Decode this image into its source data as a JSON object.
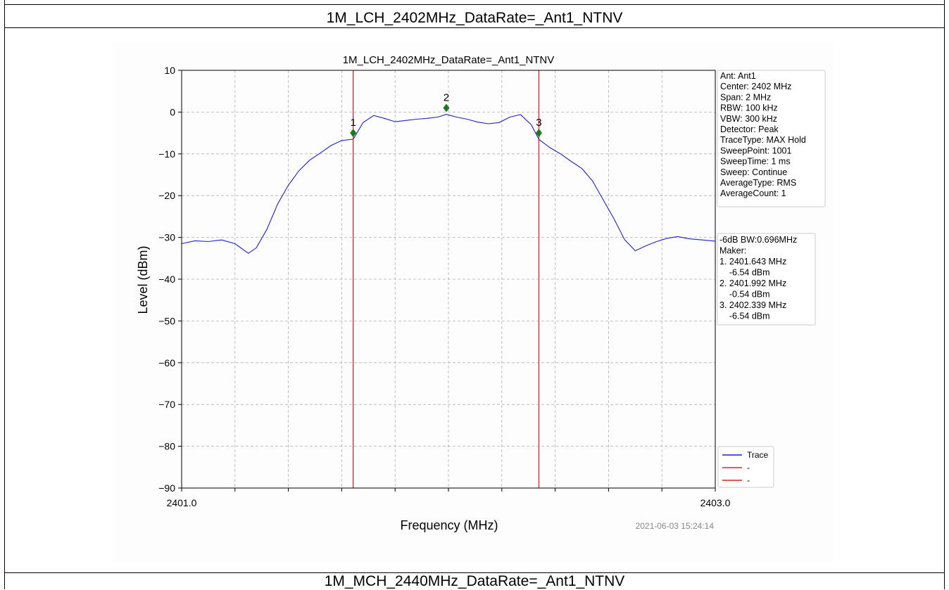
{
  "table": {
    "header_title": "1M_LCH_2402MHz_DataRate=_Ant1_NTNV",
    "footer_title": "1M_MCH_2440MHz_DataRate=_Ant1_NTNV"
  },
  "chart_data": {
    "type": "line",
    "title": "1M_LCH_2402MHz_DataRate=_Ant1_NTNV",
    "xlabel": "Frequency (MHz)",
    "ylabel": "Level (dBm)",
    "xlim": [
      2401.0,
      2403.0
    ],
    "ylim": [
      -90,
      10
    ],
    "x_tick_labels": [
      "2401.0",
      "2403.0"
    ],
    "x_minor_ticks": [
      2401.2,
      2401.4,
      2401.6,
      2401.8,
      2402.0,
      2402.2,
      2402.4,
      2402.6,
      2402.8
    ],
    "y_ticks": [
      10,
      0,
      -10,
      -20,
      -30,
      -40,
      -50,
      -60,
      -70,
      -80,
      -90
    ],
    "grid": true,
    "timestamp": "2021-06-03 15:24:14",
    "series": [
      {
        "name": "Trace",
        "color": "#1f1fd0",
        "x": [
          2401.0,
          2401.05,
          2401.1,
          2401.15,
          2401.2,
          2401.25,
          2401.28,
          2401.32,
          2401.36,
          2401.4,
          2401.44,
          2401.48,
          2401.52,
          2401.56,
          2401.6,
          2401.643,
          2401.68,
          2401.72,
          2401.76,
          2401.8,
          2401.84,
          2401.88,
          2401.92,
          2401.96,
          2401.992,
          2402.03,
          2402.07,
          2402.11,
          2402.15,
          2402.19,
          2402.23,
          2402.27,
          2402.31,
          2402.339,
          2402.38,
          2402.42,
          2402.46,
          2402.5,
          2402.54,
          2402.58,
          2402.62,
          2402.66,
          2402.7,
          2402.74,
          2402.78,
          2402.82,
          2402.86,
          2402.9,
          2402.95,
          2403.0
        ],
        "y": [
          -31.5,
          -30.8,
          -31.0,
          -30.6,
          -31.5,
          -33.8,
          -32.5,
          -28.0,
          -22.0,
          -17.5,
          -14.0,
          -11.5,
          -9.8,
          -8.0,
          -6.8,
          -6.5,
          -2.5,
          -0.8,
          -1.5,
          -2.3,
          -2.0,
          -1.7,
          -1.5,
          -1.2,
          -0.54,
          -1.2,
          -1.7,
          -2.4,
          -2.8,
          -2.5,
          -1.2,
          -0.6,
          -3.0,
          -6.54,
          -8.5,
          -10.0,
          -11.8,
          -13.5,
          -16.5,
          -21.0,
          -25.5,
          -30.5,
          -33.2,
          -32.0,
          -31.0,
          -30.2,
          -29.8,
          -30.3,
          -30.6,
          -30.9
        ]
      },
      {
        "name": "-",
        "color": "#d62728",
        "vline": 2401.643
      },
      {
        "name": "-",
        "color": "#d62728",
        "vline": 2402.339
      }
    ],
    "markers": [
      {
        "label": "1",
        "x": 2401.643,
        "y": -5.0,
        "color": "#1e7a1e"
      },
      {
        "label": "2",
        "x": 2401.992,
        "y": 1.0,
        "color": "#1e7a1e"
      },
      {
        "label": "3",
        "x": 2402.339,
        "y": -5.0,
        "color": "#1e7a1e"
      }
    ],
    "info_box": [
      "Ant: Ant1",
      "Center: 2402 MHz",
      "Span: 2 MHz",
      "RBW: 100 kHz",
      "VBW: 300 kHz",
      "Detector: Peak",
      "TraceType: MAX Hold",
      "SweepPoint: 1001",
      "SweepTime: 1 ms",
      "Sweep: Continue",
      "AverageType: RMS",
      "AverageCount: 1"
    ],
    "marker_box": [
      "-6dB BW:0.696MHz",
      "Maker:",
      "1. 2401.643 MHz",
      "    -6.54 dBm",
      "2. 2401.992 MHz",
      "    -0.54 dBm",
      "3. 2402.339 MHz",
      "    -6.54 dBm"
    ],
    "legend_position": "lower-right"
  }
}
